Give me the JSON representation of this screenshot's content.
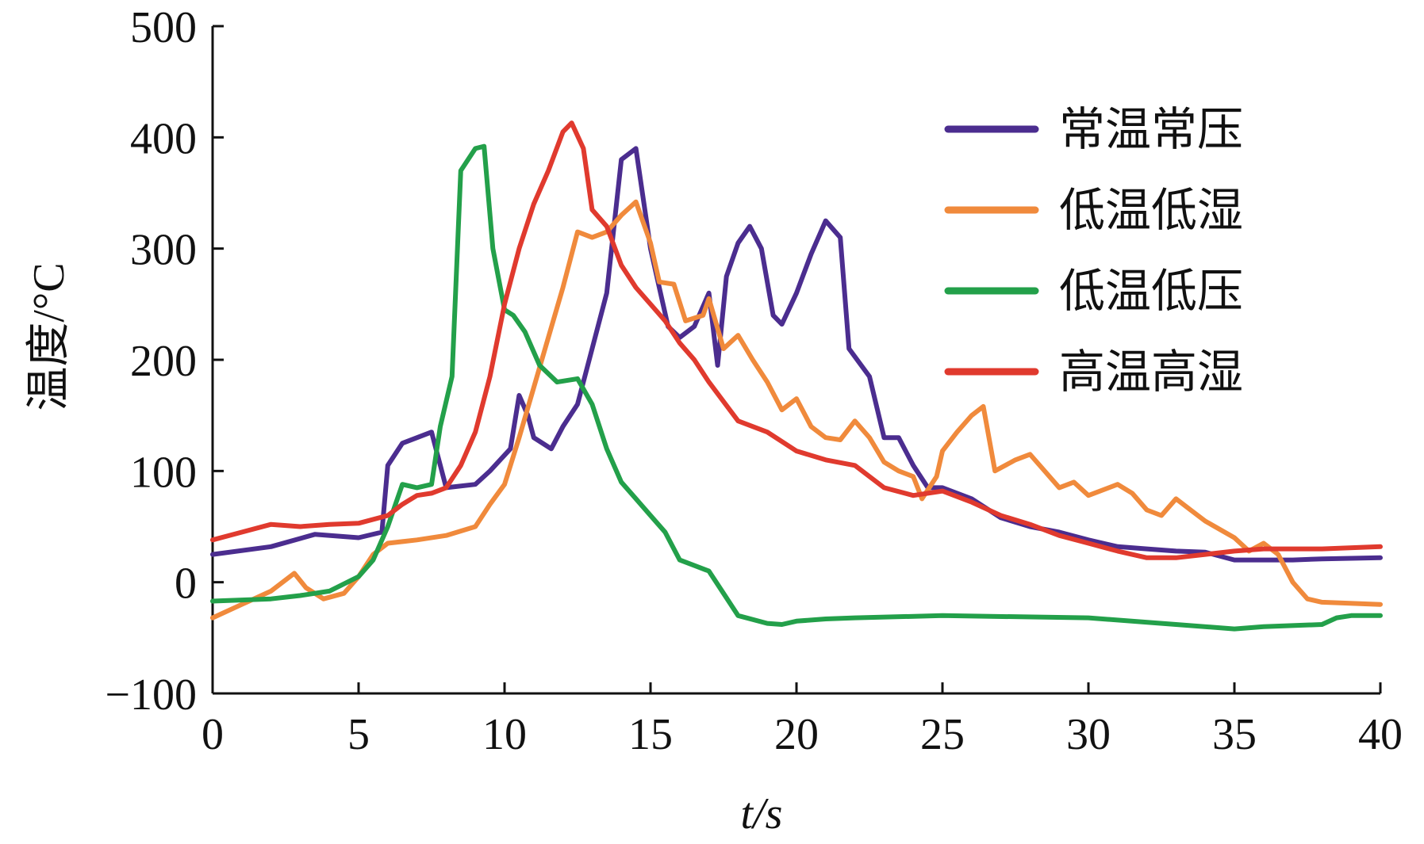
{
  "chart_data": {
    "type": "line",
    "title": "",
    "xlabel": "t/s",
    "ylabel": "温度/°C",
    "xlim": [
      0,
      40
    ],
    "ylim": [
      -100,
      500
    ],
    "xticks": [
      0,
      5,
      10,
      15,
      20,
      25,
      30,
      35,
      40
    ],
    "yticks": [
      -100,
      0,
      100,
      200,
      300,
      400,
      500
    ],
    "xtick_labels": [
      "0",
      "5",
      "10",
      "15",
      "20",
      "25",
      "30",
      "35",
      "40"
    ],
    "ytick_labels": [
      "−100",
      "0",
      "100",
      "200",
      "300",
      "400",
      "500"
    ],
    "grid": false,
    "legend_position": "top-right",
    "series": [
      {
        "name": "常温常压",
        "color": "#4b2d8f",
        "points": [
          [
            0,
            25
          ],
          [
            2,
            32
          ],
          [
            3.5,
            43
          ],
          [
            5,
            40
          ],
          [
            5.8,
            45
          ],
          [
            6,
            105
          ],
          [
            6.5,
            125
          ],
          [
            7.5,
            135
          ],
          [
            8,
            85
          ],
          [
            9,
            88
          ],
          [
            9.5,
            100
          ],
          [
            10.2,
            120
          ],
          [
            10.5,
            168
          ],
          [
            10.8,
            150
          ],
          [
            11,
            130
          ],
          [
            11.6,
            120
          ],
          [
            12,
            140
          ],
          [
            12.5,
            160
          ],
          [
            13,
            210
          ],
          [
            13.5,
            260
          ],
          [
            14,
            380
          ],
          [
            14.5,
            390
          ],
          [
            15,
            300
          ],
          [
            15.6,
            230
          ],
          [
            16,
            220
          ],
          [
            16.5,
            230
          ],
          [
            17,
            260
          ],
          [
            17.3,
            195
          ],
          [
            17.6,
            275
          ],
          [
            18,
            305
          ],
          [
            18.4,
            320
          ],
          [
            18.8,
            300
          ],
          [
            19.2,
            240
          ],
          [
            19.5,
            232
          ],
          [
            20,
            260
          ],
          [
            20.5,
            295
          ],
          [
            21,
            325
          ],
          [
            21.5,
            310
          ],
          [
            21.8,
            210
          ],
          [
            22.5,
            185
          ],
          [
            23,
            130
          ],
          [
            23.5,
            130
          ],
          [
            24,
            105
          ],
          [
            24.5,
            85
          ],
          [
            25,
            85
          ],
          [
            26,
            75
          ],
          [
            27,
            58
          ],
          [
            28,
            50
          ],
          [
            29,
            45
          ],
          [
            30,
            38
          ],
          [
            31,
            32
          ],
          [
            32,
            30
          ],
          [
            33,
            28
          ],
          [
            34,
            27
          ],
          [
            35,
            20
          ],
          [
            37,
            20
          ],
          [
            38,
            21
          ],
          [
            40,
            22
          ]
        ]
      },
      {
        "name": "低温低湿",
        "color": "#f08a3c",
        "points": [
          [
            0,
            -32
          ],
          [
            1,
            -20
          ],
          [
            2,
            -8
          ],
          [
            2.8,
            8
          ],
          [
            3.2,
            -5
          ],
          [
            3.8,
            -15
          ],
          [
            4.5,
            -10
          ],
          [
            5,
            5
          ],
          [
            5.5,
            25
          ],
          [
            6,
            35
          ],
          [
            7,
            38
          ],
          [
            8,
            42
          ],
          [
            9,
            50
          ],
          [
            9.5,
            70
          ],
          [
            10,
            88
          ],
          [
            10.5,
            130
          ],
          [
            11,
            175
          ],
          [
            11.5,
            220
          ],
          [
            12,
            265
          ],
          [
            12.5,
            315
          ],
          [
            13,
            310
          ],
          [
            13.5,
            315
          ],
          [
            14,
            330
          ],
          [
            14.5,
            342
          ],
          [
            15,
            305
          ],
          [
            15.3,
            270
          ],
          [
            15.8,
            268
          ],
          [
            16.2,
            235
          ],
          [
            16.8,
            240
          ],
          [
            17,
            255
          ],
          [
            17.5,
            210
          ],
          [
            18,
            222
          ],
          [
            18.5,
            200
          ],
          [
            19,
            180
          ],
          [
            19.5,
            155
          ],
          [
            20,
            165
          ],
          [
            20.5,
            140
          ],
          [
            21,
            130
          ],
          [
            21.5,
            128
          ],
          [
            22,
            145
          ],
          [
            22.5,
            130
          ],
          [
            23,
            108
          ],
          [
            23.5,
            100
          ],
          [
            24,
            95
          ],
          [
            24.3,
            75
          ],
          [
            24.8,
            95
          ],
          [
            25,
            118
          ],
          [
            25.5,
            135
          ],
          [
            26,
            150
          ],
          [
            26.4,
            158
          ],
          [
            26.8,
            100
          ],
          [
            27.5,
            110
          ],
          [
            28,
            115
          ],
          [
            28.5,
            100
          ],
          [
            29,
            85
          ],
          [
            29.5,
            90
          ],
          [
            30,
            78
          ],
          [
            31,
            88
          ],
          [
            31.5,
            80
          ],
          [
            32,
            65
          ],
          [
            32.5,
            60
          ],
          [
            33,
            75
          ],
          [
            33.5,
            65
          ],
          [
            34,
            55
          ],
          [
            35,
            40
          ],
          [
            35.5,
            28
          ],
          [
            36,
            35
          ],
          [
            36.5,
            25
          ],
          [
            37,
            0
          ],
          [
            37.5,
            -15
          ],
          [
            38,
            -18
          ],
          [
            40,
            -20
          ]
        ]
      },
      {
        "name": "低温低压",
        "color": "#23a04a",
        "points": [
          [
            0,
            -17
          ],
          [
            2,
            -15
          ],
          [
            3,
            -12
          ],
          [
            4,
            -8
          ],
          [
            5,
            5
          ],
          [
            5.5,
            20
          ],
          [
            6,
            50
          ],
          [
            6.5,
            88
          ],
          [
            7,
            85
          ],
          [
            7.5,
            88
          ],
          [
            7.8,
            140
          ],
          [
            8.2,
            185
          ],
          [
            8.5,
            370
          ],
          [
            9,
            390
          ],
          [
            9.3,
            392
          ],
          [
            9.6,
            300
          ],
          [
            10,
            245
          ],
          [
            10.3,
            240
          ],
          [
            10.7,
            225
          ],
          [
            11.2,
            195
          ],
          [
            11.8,
            180
          ],
          [
            12.5,
            183
          ],
          [
            13,
            160
          ],
          [
            13.5,
            120
          ],
          [
            14,
            90
          ],
          [
            14.5,
            75
          ],
          [
            15,
            60
          ],
          [
            15.5,
            45
          ],
          [
            16,
            20
          ],
          [
            16.5,
            15
          ],
          [
            17,
            10
          ],
          [
            17.5,
            -10
          ],
          [
            18,
            -30
          ],
          [
            19,
            -37
          ],
          [
            19.5,
            -38
          ],
          [
            20,
            -35
          ],
          [
            21,
            -33
          ],
          [
            22,
            -32
          ],
          [
            25,
            -30
          ],
          [
            30,
            -32
          ],
          [
            33,
            -38
          ],
          [
            35,
            -42
          ],
          [
            36,
            -40
          ],
          [
            38,
            -38
          ],
          [
            38.5,
            -32
          ],
          [
            39,
            -30
          ],
          [
            40,
            -30
          ]
        ]
      },
      {
        "name": "高温高湿",
        "color": "#e03a2e",
        "points": [
          [
            0,
            38
          ],
          [
            1,
            45
          ],
          [
            2,
            52
          ],
          [
            3,
            50
          ],
          [
            4,
            52
          ],
          [
            5,
            53
          ],
          [
            6,
            60
          ],
          [
            6.5,
            70
          ],
          [
            7,
            78
          ],
          [
            7.5,
            80
          ],
          [
            8,
            85
          ],
          [
            8.5,
            105
          ],
          [
            9,
            135
          ],
          [
            9.5,
            185
          ],
          [
            10,
            250
          ],
          [
            10.5,
            300
          ],
          [
            11,
            340
          ],
          [
            11.5,
            370
          ],
          [
            12,
            405
          ],
          [
            12.3,
            413
          ],
          [
            12.7,
            390
          ],
          [
            13,
            335
          ],
          [
            13.5,
            320
          ],
          [
            14,
            285
          ],
          [
            14.5,
            265
          ],
          [
            15,
            250
          ],
          [
            15.5,
            235
          ],
          [
            16,
            215
          ],
          [
            16.5,
            200
          ],
          [
            17,
            180
          ],
          [
            18,
            145
          ],
          [
            19,
            135
          ],
          [
            20,
            118
          ],
          [
            21,
            110
          ],
          [
            22,
            105
          ],
          [
            23,
            85
          ],
          [
            24,
            78
          ],
          [
            25,
            82
          ],
          [
            26,
            72
          ],
          [
            27,
            60
          ],
          [
            28,
            52
          ],
          [
            29,
            42
          ],
          [
            30,
            35
          ],
          [
            31,
            28
          ],
          [
            32,
            22
          ],
          [
            33,
            22
          ],
          [
            34,
            25
          ],
          [
            35,
            28
          ],
          [
            36,
            30
          ],
          [
            38,
            30
          ],
          [
            40,
            32
          ]
        ]
      }
    ]
  }
}
